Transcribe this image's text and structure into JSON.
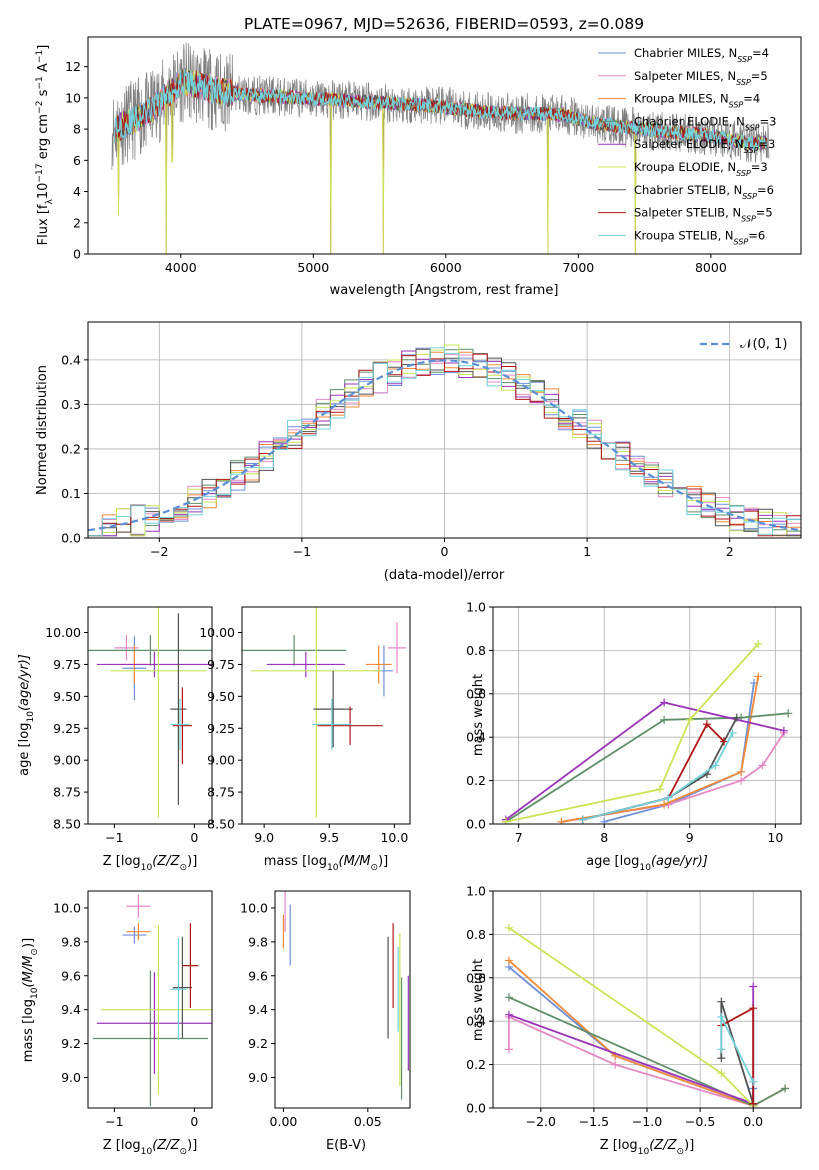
{
  "title": "PLATE=0967, MJD=52636, FIBERID=0593, z=0.089",
  "colors": {
    "series": [
      "#6f8fd8",
      "#e58ac4",
      "#f08a3a",
      "#5f8f6a",
      "#9a35b8",
      "#c9e457",
      "#505050",
      "#b01515",
      "#72d2da"
    ],
    "gaussian": "#5b8fd6"
  },
  "legend_main": [
    "Chabrier MILES",
    "Salpeter MILES",
    "Kroupa MILES",
    "Chabrier ELODIE",
    "Salpeter ELODIE",
    "Kroupa ELODIE",
    "Chabrier STELIB",
    "Salpeter STELIB",
    "Kroupa STELIB"
  ],
  "nssp_label": "N",
  "nssp_sub": "SSP",
  "nssp_values": [
    "4",
    "5",
    "4",
    "3",
    "3",
    "3",
    "6",
    "5",
    "6"
  ],
  "chart_data": [
    {
      "type": "line",
      "title": "PLATE=0967, MJD=52636, FIBERID=0593, z=0.089",
      "xlabel": "wavelength [Angstrom, rest frame]",
      "ylabel_parts": [
        "Flux [f",
        "λ",
        "10",
        "−17",
        " erg cm",
        "−2",
        " s",
        "−1",
        " A",
        "−1",
        "]"
      ],
      "xlim": [
        3300,
        8680
      ],
      "ylim": [
        0,
        13.9
      ],
      "xticks": [
        4000,
        5000,
        6000,
        7000,
        8000
      ],
      "yticks": [
        0,
        2,
        4,
        6,
        8,
        10,
        12
      ],
      "grid": false,
      "legend_position": "upper-right",
      "spectrum_anchors": {
        "x": [
          3500,
          3600,
          3700,
          3800,
          3900,
          4000,
          4100,
          4200,
          4300,
          4400,
          4500,
          4700,
          4900,
          5100,
          5300,
          5500,
          5700,
          5900,
          6100,
          6300,
          6500,
          6700,
          6900,
          7100,
          7300,
          7500,
          7700,
          7900,
          8100,
          8300
        ],
        "y": [
          8.0,
          8.4,
          8.8,
          9.4,
          10.2,
          11.0,
          10.9,
          10.6,
          10.4,
          10.3,
          10.2,
          10.1,
          10.0,
          9.9,
          9.8,
          9.7,
          9.6,
          9.5,
          9.3,
          9.1,
          9.0,
          9.0,
          8.9,
          8.4,
          8.2,
          8.0,
          7.8,
          7.7,
          7.4,
          7.1
        ]
      },
      "absorption_dips": [
        {
          "x": 3530,
          "y": 2.5
        },
        {
          "x": 3890,
          "y": 0.0
        },
        {
          "x": 3935,
          "y": 5.9
        },
        {
          "x": 5130,
          "y": 0.0
        },
        {
          "x": 5530,
          "y": 0.0
        },
        {
          "x": 6770,
          "y": 0.0
        },
        {
          "x": 7430,
          "y": 0.0
        }
      ]
    },
    {
      "type": "step",
      "xlabel": "(data-model)/error",
      "ylabel": "Normed distribution",
      "xlim": [
        -2.5,
        2.5
      ],
      "ylim": [
        0,
        0.485
      ],
      "xticks": [
        -2,
        -1,
        0,
        1,
        2
      ],
      "yticks": [
        0.0,
        0.1,
        0.2,
        0.3,
        0.4
      ],
      "grid": true,
      "legend_position": "upper-right",
      "legend": [
        "𝒩(0, 1)"
      ],
      "bin_width": 0.1
    },
    {
      "type": "errorbar",
      "xlabel_parts": [
        "Z [log",
        "10",
        "(Z/Z",
        "⊙",
        ")]"
      ],
      "ylabel_parts": [
        "age  [log",
        "10",
        "(age/yr)]"
      ],
      "xlim": [
        -1.33,
        0.22
      ],
      "ylim": [
        8.5,
        10.2
      ],
      "xticks": [
        -1,
        0
      ],
      "yticks": [
        8.5,
        8.75,
        9.0,
        9.25,
        9.5,
        9.75,
        10.0
      ],
      "points": [
        {
          "x": -0.75,
          "xerr": 0.15,
          "y": 9.72,
          "yerr": 0.25
        },
        {
          "x": -0.85,
          "xerr": 0.15,
          "y": 9.88,
          "yerr": 0.1
        },
        {
          "x": -0.75,
          "xerr": 0.15,
          "y": 9.75,
          "yerr": 0.15
        },
        {
          "x": -0.55,
          "xerr": 0.78,
          "y": 9.86,
          "yerr": 0.12
        },
        {
          "x": -0.5,
          "xerr": 0.72,
          "y": 9.75,
          "yerr": 0.1
        },
        {
          "x": -0.45,
          "xerr": 0.6,
          "y": 9.7,
          "yerr": 1.15
        },
        {
          "x": -0.2,
          "xerr": 0.1,
          "y": 9.4,
          "yerr": 0.75
        },
        {
          "x": -0.15,
          "xerr": 0.12,
          "y": 9.27,
          "yerr": 0.3
        },
        {
          "x": -0.18,
          "xerr": 0.12,
          "y": 9.28,
          "yerr": 0.2
        }
      ]
    },
    {
      "type": "errorbar",
      "xlabel_parts": [
        "mass [log",
        "10",
        "(M/M",
        "⊙",
        ")]"
      ],
      "ylabel": "",
      "xlim": [
        8.83,
        10.12
      ],
      "ylim": [
        8.5,
        10.2
      ],
      "xticks": [
        9.0,
        9.5,
        10.0
      ],
      "yticks": [
        8.5,
        8.75,
        9.0,
        9.25,
        9.5,
        9.75,
        10.0
      ],
      "points": [
        {
          "x": 9.92,
          "xerr": 0.07,
          "y": 9.7,
          "yerr": 0.2
        },
        {
          "x": 10.02,
          "xerr": 0.07,
          "y": 9.88,
          "yerr": 0.2
        },
        {
          "x": 9.88,
          "xerr": 0.1,
          "y": 9.75,
          "yerr": 0.15
        },
        {
          "x": 9.23,
          "xerr": 0.4,
          "y": 9.86,
          "yerr": 0.12
        },
        {
          "x": 9.32,
          "xerr": 0.3,
          "y": 9.75,
          "yerr": 0.1
        },
        {
          "x": 9.4,
          "xerr": 0.5,
          "y": 9.7,
          "yerr": 1.15
        },
        {
          "x": 9.53,
          "xerr": 0.15,
          "y": 9.4,
          "yerr": 0.3
        },
        {
          "x": 9.66,
          "xerr": 0.25,
          "y": 9.27,
          "yerr": 0.15
        },
        {
          "x": 9.52,
          "xerr": 0.15,
          "y": 9.28,
          "yerr": 0.2
        }
      ]
    },
    {
      "type": "line",
      "xlabel_parts": [
        "age  [log",
        "10",
        "(age/yr)]"
      ],
      "ylabel": "mass weight",
      "xlim": [
        6.7,
        10.3
      ],
      "ylim": [
        0,
        1.0
      ],
      "xticks": [
        7,
        8,
        9,
        10
      ],
      "yticks": [
        0.0,
        0.2,
        0.4,
        0.6,
        0.8,
        1.0
      ],
      "grid": true,
      "series": [
        {
          "x": [
            8.0,
            8.75,
            9.6,
            9.75
          ],
          "y": [
            0.01,
            0.09,
            0.24,
            0.65
          ]
        },
        {
          "x": [
            7.5,
            8.75,
            9.6,
            9.85,
            10.1
          ],
          "y": [
            0.01,
            0.09,
            0.2,
            0.27,
            0.42
          ]
        },
        {
          "x": [
            7.5,
            8.7,
            9.6,
            9.8
          ],
          "y": [
            0.01,
            0.09,
            0.24,
            0.68
          ]
        },
        {
          "x": [
            6.85,
            8.7,
            9.6,
            10.15
          ],
          "y": [
            0.01,
            0.48,
            0.49,
            0.51
          ]
        },
        {
          "x": [
            6.85,
            8.7,
            10.1
          ],
          "y": [
            0.02,
            0.56,
            0.43
          ]
        },
        {
          "x": [
            6.85,
            8.65,
            9.0,
            9.8
          ],
          "y": [
            0.01,
            0.16,
            0.48,
            0.83
          ]
        },
        {
          "x": [
            7.75,
            8.75,
            9.2,
            9.4,
            9.55
          ],
          "y": [
            0.02,
            0.12,
            0.23,
            0.38,
            0.49
          ]
        },
        {
          "x": [
            7.75,
            8.75,
            9.2,
            9.4
          ],
          "y": [
            0.02,
            0.12,
            0.46,
            0.38
          ]
        },
        {
          "x": [
            7.75,
            8.75,
            9.3,
            9.5
          ],
          "y": [
            0.02,
            0.12,
            0.27,
            0.42
          ]
        }
      ]
    },
    {
      "type": "errorbar",
      "xlabel_parts": [
        "Z [log",
        "10",
        "(Z/Z",
        "⊙",
        ")]"
      ],
      "ylabel_parts": [
        "mass [log",
        "10",
        "(M/M",
        "⊙",
        ")]"
      ],
      "xlim": [
        -1.33,
        0.22
      ],
      "ylim": [
        8.82,
        10.1
      ],
      "xticks": [
        -1,
        0
      ],
      "yticks": [
        9.0,
        9.2,
        9.4,
        9.6,
        9.8,
        10.0
      ],
      "points": [
        {
          "x": -0.75,
          "xerr": 0.15,
          "y": 9.84,
          "yerr": 0.05
        },
        {
          "x": -0.7,
          "xerr": 0.15,
          "y": 10.01,
          "yerr": 0.07
        },
        {
          "x": -0.7,
          "xerr": 0.15,
          "y": 9.86,
          "yerr": 0.05
        },
        {
          "x": -0.55,
          "xerr": 0.72,
          "y": 9.23,
          "yerr": 0.4
        },
        {
          "x": -0.5,
          "xerr": 0.72,
          "y": 9.32,
          "yerr": 0.3
        },
        {
          "x": -0.45,
          "xerr": 0.72,
          "y": 9.4,
          "yerr": 0.5
        },
        {
          "x": -0.15,
          "xerr": 0.12,
          "y": 9.53,
          "yerr": 0.3
        },
        {
          "x": -0.05,
          "xerr": 0.1,
          "y": 9.66,
          "yerr": 0.25
        },
        {
          "x": -0.2,
          "xerr": 0.1,
          "y": 9.52,
          "yerr": 0.3
        }
      ]
    },
    {
      "type": "errorbar",
      "xlabel": "E(B-V)",
      "ylabel": "",
      "xlim": [
        -0.005,
        0.075
      ],
      "ylim": [
        8.82,
        10.1
      ],
      "xticks": [
        0.0,
        0.05
      ],
      "xtick_labels": [
        "0.00",
        "0.05"
      ],
      "yticks": [
        9.0,
        9.2,
        9.4,
        9.6,
        9.8,
        10.0
      ],
      "points": [
        {
          "x": 0.004,
          "y": 9.84,
          "yerr": 0.18
        },
        {
          "x": 0.001,
          "y": 9.98,
          "yerr": 0.12
        },
        {
          "x": 0.0,
          "y": 9.86,
          "yerr": 0.1
        },
        {
          "x": 0.07,
          "y": 9.23,
          "yerr": 0.36
        },
        {
          "x": 0.074,
          "y": 9.32,
          "yerr": 0.28
        },
        {
          "x": 0.069,
          "y": 9.4,
          "yerr": 0.45
        },
        {
          "x": 0.062,
          "y": 9.53,
          "yerr": 0.3
        },
        {
          "x": 0.065,
          "y": 9.66,
          "yerr": 0.25
        },
        {
          "x": 0.068,
          "y": 9.52,
          "yerr": 0.25
        }
      ]
    },
    {
      "type": "line",
      "xlabel_parts": [
        "Z [log",
        "10",
        "(Z/Z",
        "⊙",
        ")]"
      ],
      "ylabel": "mass weight",
      "xlim": [
        -2.45,
        0.45
      ],
      "ylim": [
        0,
        1.0
      ],
      "xticks": [
        -2.0,
        -1.5,
        -1.0,
        -0.5,
        0.0
      ],
      "yticks": [
        0.0,
        0.2,
        0.4,
        0.6,
        0.8,
        1.0
      ],
      "grid": true,
      "series": [
        {
          "x": [
            -2.3,
            -1.3,
            0.0,
            0.0
          ],
          "y": [
            0.65,
            0.24,
            0.01,
            0.09
          ]
        },
        {
          "x": [
            -2.3,
            -2.3,
            -1.3,
            0.0,
            0.3
          ],
          "y": [
            0.27,
            0.42,
            0.2,
            0.01,
            0.09
          ]
        },
        {
          "x": [
            -2.3,
            -1.3,
            0.0,
            0.3
          ],
          "y": [
            0.68,
            0.24,
            0.01,
            0.09
          ]
        },
        {
          "x": [
            -2.3,
            0.0,
            0.3
          ],
          "y": [
            0.51,
            0.01,
            0.09
          ]
        },
        {
          "x": [
            -2.3,
            0.0,
            0.0
          ],
          "y": [
            0.43,
            0.02,
            0.56
          ]
        },
        {
          "x": [
            -2.3,
            -0.3,
            0.0
          ],
          "y": [
            0.83,
            0.16,
            0.01
          ]
        },
        {
          "x": [
            -0.3,
            -0.3,
            0.0,
            0.0
          ],
          "y": [
            0.23,
            0.49,
            0.02,
            0.12
          ]
        },
        {
          "x": [
            -0.3,
            0.0,
            0.0
          ],
          "y": [
            0.38,
            0.46,
            0.02
          ]
        },
        {
          "x": [
            -0.3,
            -0.3,
            0.0
          ],
          "y": [
            0.27,
            0.42,
            0.12
          ]
        }
      ]
    }
  ]
}
